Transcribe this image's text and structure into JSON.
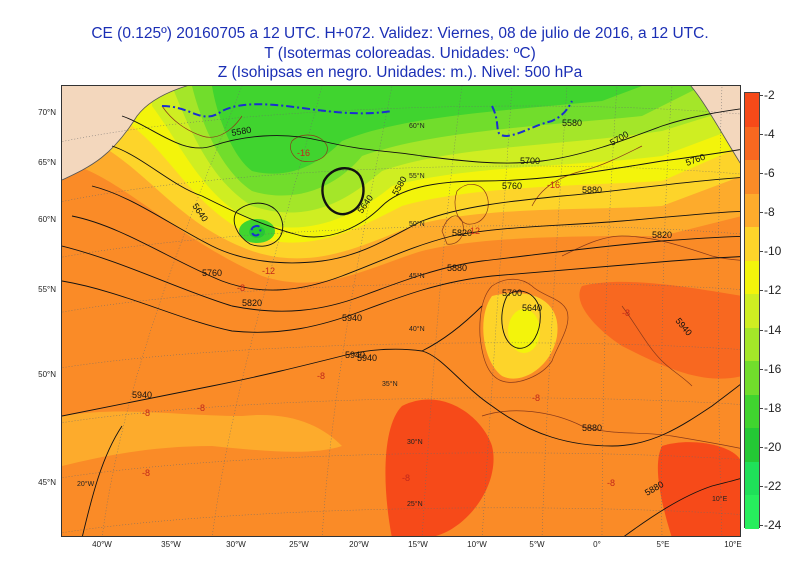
{
  "title": {
    "line1": "CE (0.125º) 20160705 a 12 UTC.  H+072. Validez: Viernes, 08 de julio de 2016,  a  12 UTC.",
    "line2": "T (Isotermas coloreadas. Unidades: ºC)",
    "line3": "Z (Isohipsas en negro. Unidades: m.).   Nivel: 500 hPa"
  },
  "colors": {
    "title": "#1b2fb5",
    "land": "#f3d7bd",
    "temperature_scale": [
      "#f64a19",
      "#f86820",
      "#fa8b27",
      "#fdab2c",
      "#fdd42a",
      "#f3f40b",
      "#cfee22",
      "#a4e629",
      "#71dd2c",
      "#40d42f",
      "#24c935",
      "#1fe059",
      "#27ee5d"
    ]
  },
  "colorbar": {
    "labels": [
      "-2",
      "-4",
      "-6",
      "-8",
      "-10",
      "-12",
      "-14",
      "-16",
      "-18",
      "-20",
      "-22",
      "-24"
    ]
  },
  "left_lat_labels": [
    "70°N",
    "65°N",
    "60°N",
    "55°N",
    "50°N",
    "45°N"
  ],
  "bottom_lon_labels": [
    "40°W",
    "35°W",
    "30°W",
    "25°W",
    "20°W",
    "15°W",
    "10°W",
    "5°W",
    "0°",
    "5°E",
    "10°E"
  ],
  "inner_lat_labels": [
    "60°N",
    "55°N",
    "50°N",
    "45°N",
    "40°N",
    "35°N",
    "30°N",
    "25°N"
  ],
  "inner_lon_labels": [
    "20°W",
    "10°E"
  ],
  "contour_labels": [
    "5580",
    "5640",
    "5700",
    "5760",
    "5820",
    "5880",
    "5940",
    "5580",
    "5640",
    "5700",
    "5760",
    "5820",
    "5880",
    "5940",
    "5940",
    "5940",
    "5940",
    "5880",
    "5880",
    "5820",
    "5760",
    "5700",
    "5640",
    "5580"
  ],
  "isotherm_labels": [
    "-16",
    "-16",
    "-12",
    "-12",
    "-8",
    "-8",
    "-8",
    "-8",
    "-8",
    "-8",
    "-8",
    "-8",
    "-8"
  ],
  "map": {
    "scale_min": -24,
    "scale_max": -2,
    "scale_step": 2
  }
}
